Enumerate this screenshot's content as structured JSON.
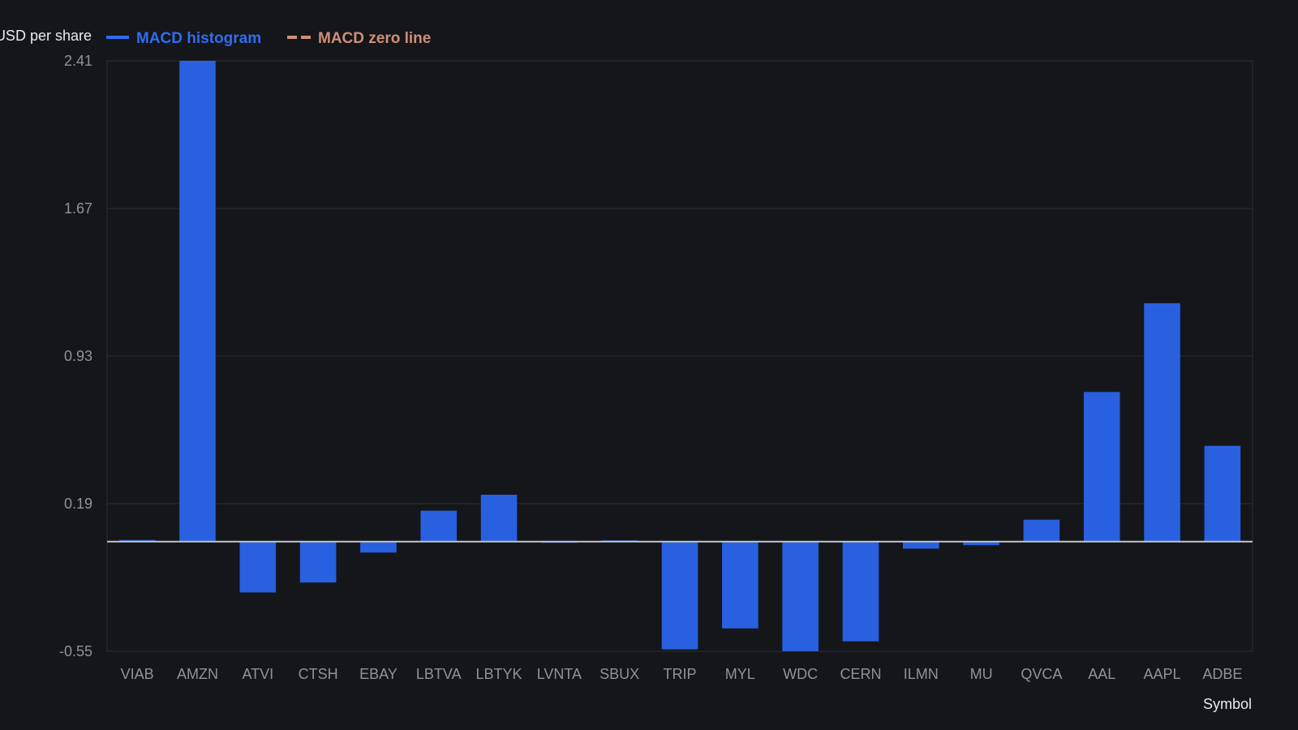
{
  "chart_data": {
    "type": "bar",
    "categories": [
      "VIAB",
      "AMZN",
      "ATVI",
      "CTSH",
      "EBAY",
      "LBTVA",
      "LBTYK",
      "LVNTA",
      "SBUX",
      "TRIP",
      "MYL",
      "WDC",
      "CERN",
      "ILMN",
      "MU",
      "QVCA",
      "AAL",
      "AAPL",
      "ADBE"
    ],
    "series": [
      {
        "name": "MACD histogram",
        "values": [
          0.008,
          2.41,
          -0.255,
          -0.205,
          -0.055,
          0.155,
          0.235,
          -0.003,
          0.006,
          -0.54,
          -0.435,
          -0.55,
          -0.5,
          -0.035,
          -0.018,
          0.11,
          0.75,
          1.195,
          0.48
        ]
      }
    ],
    "zero_line": {
      "name": "MACD zero line",
      "value": 0
    },
    "title": "",
    "xlabel": "Symbol",
    "ylabel": "USD per share",
    "y_ticks": [
      "2.41",
      "1.67",
      "0.93",
      "0.19",
      "-0.55"
    ],
    "ylim": [
      -0.55,
      2.41
    ],
    "grid": true,
    "legend_position": "top-left",
    "colors": {
      "background": "#14161a",
      "bar": "#2860e0",
      "grid": "#2a2d33",
      "zero_line": "#c2c5ca",
      "legend_zero": "#d08e78",
      "legend_hist": "#2f6df0"
    }
  }
}
